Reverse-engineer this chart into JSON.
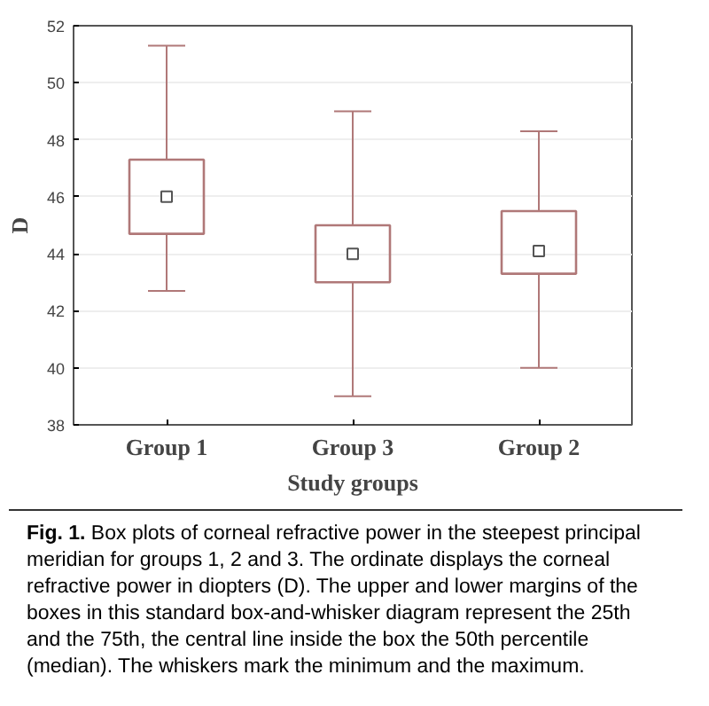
{
  "chart_data": {
    "type": "box",
    "xlabel": "Study groups",
    "ylabel": "D",
    "categories": [
      "Group 1",
      "Group 3",
      "Group 2"
    ],
    "series": [
      {
        "color": "#b07878",
        "boxes": [
          {
            "low": 42.7,
            "q1": 44.7,
            "median": 46.0,
            "q3": 47.3,
            "high": 51.3
          },
          {
            "low": 39.0,
            "q1": 43.0,
            "median": 44.0,
            "q3": 45.0,
            "high": 49.0
          },
          {
            "low": 40.0,
            "q1": 43.3,
            "median": 44.1,
            "q3": 45.5,
            "high": 48.3
          }
        ]
      }
    ],
    "ylim": [
      38,
      52
    ],
    "yticks": [
      38,
      40,
      42,
      44,
      46,
      48,
      50,
      52
    ],
    "grid": "y",
    "marker": "square",
    "annotations": [
      "Fig. 1.",
      "Box plots of corneal refractive power in the steepest principal meridian for groups 1, 2 and 3. The ordinate displays the corneal refractive power in diopters (D). The upper and lower margins of the boxes in this standard box-and-whisker diagram represent the 25th and the 75th, the central line inside the box the 50th percentile (median). The whiskers mark the minimum and the maximum."
    ]
  }
}
